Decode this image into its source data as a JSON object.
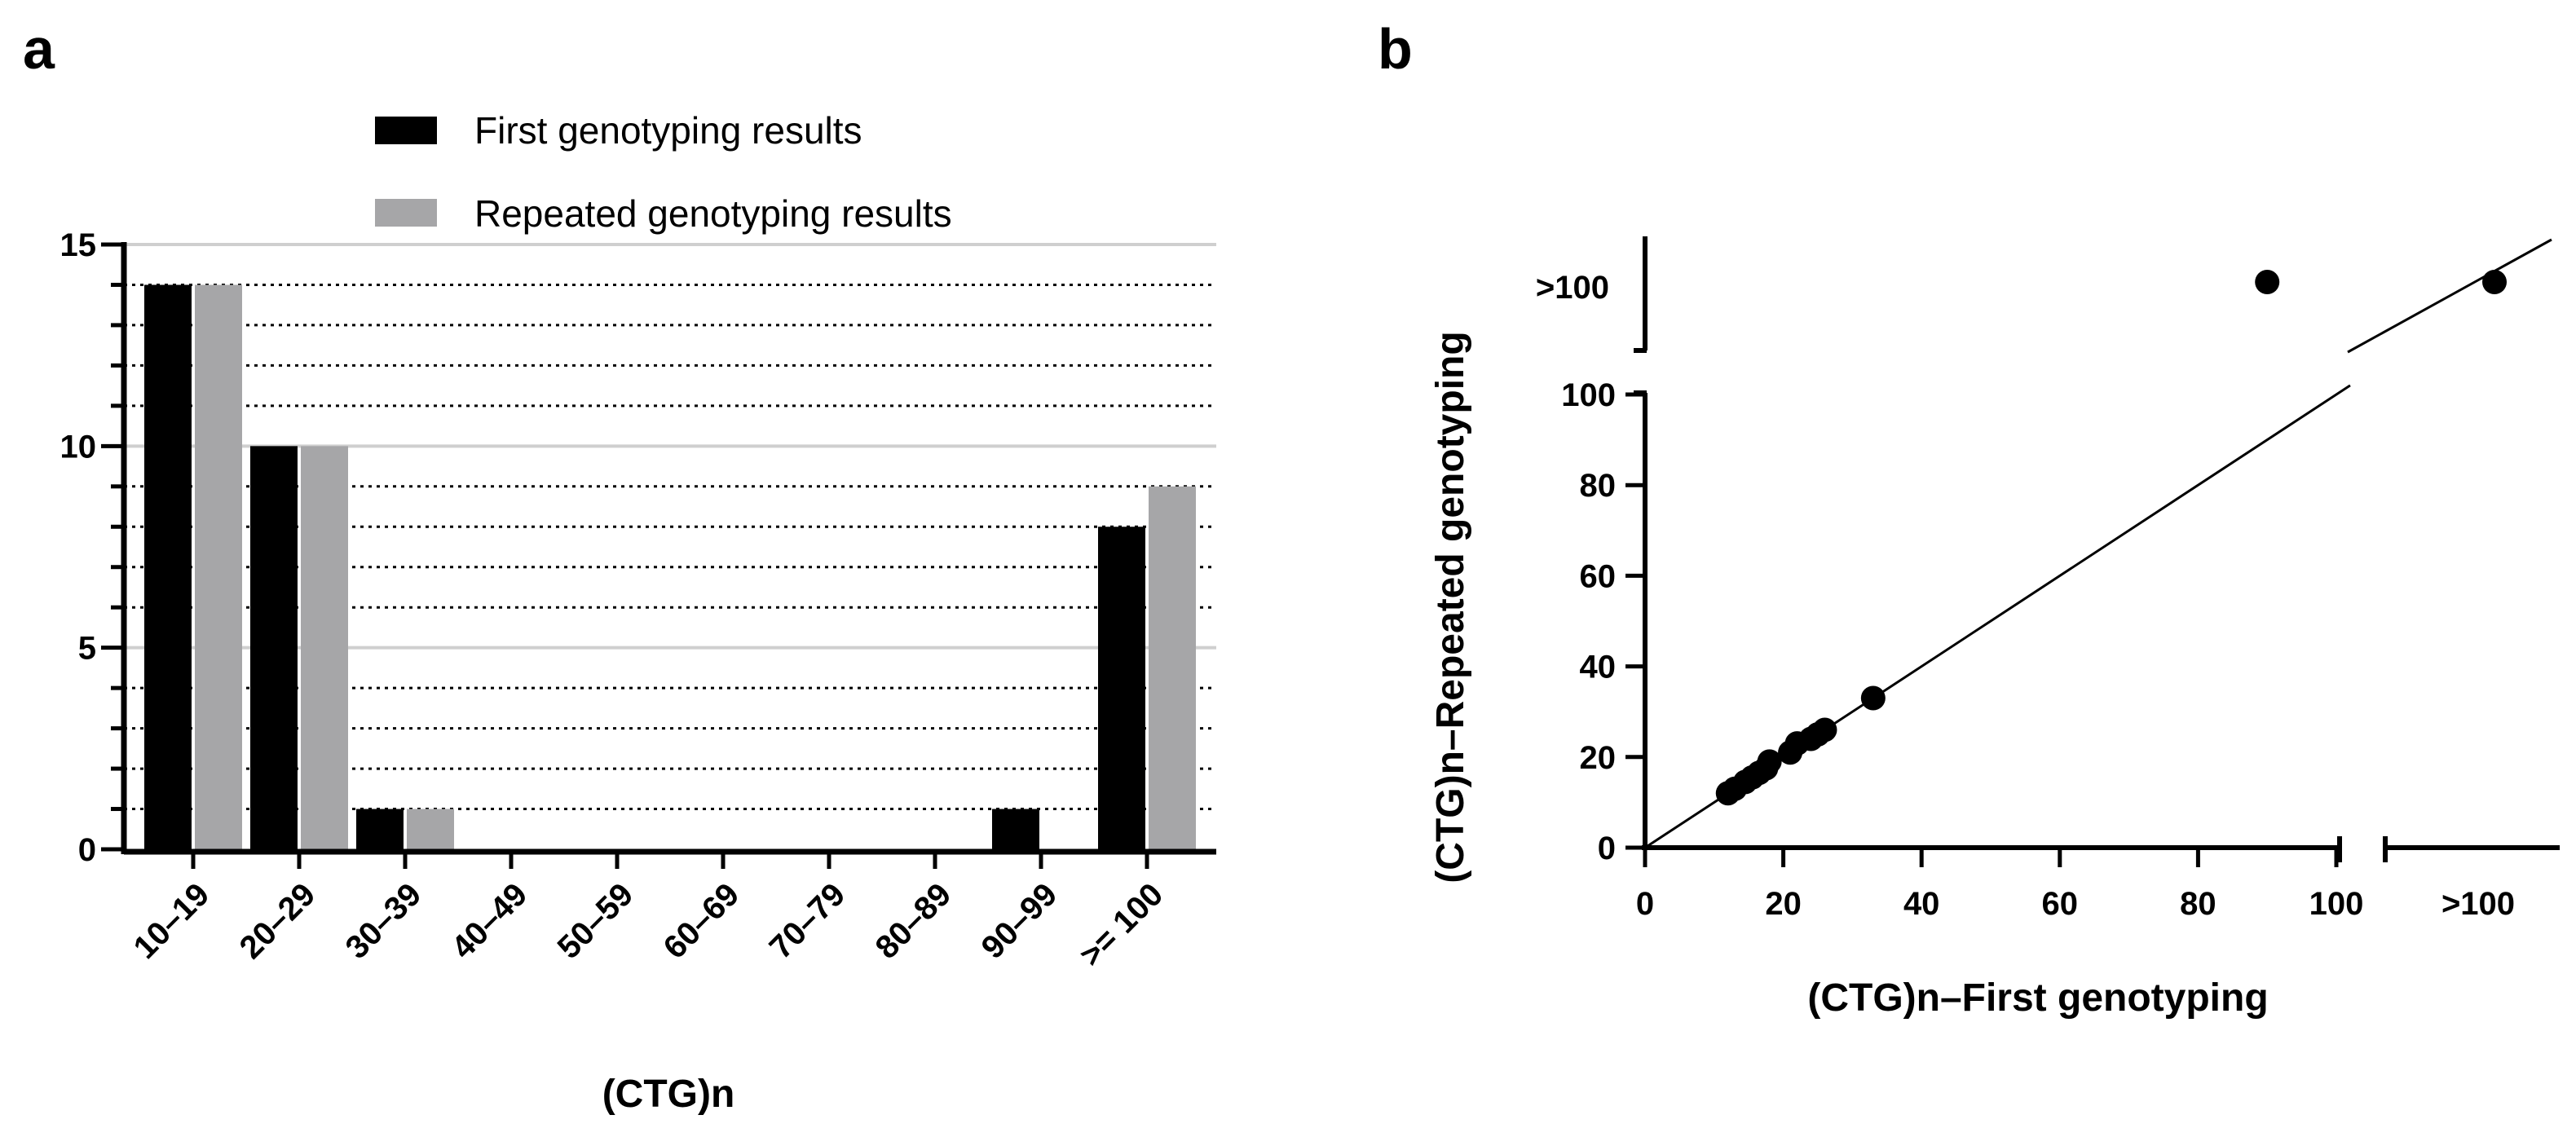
{
  "chart_data": [
    {
      "panel": "a",
      "type": "bar",
      "xlabel": "(CTG)n",
      "ylabel": "",
      "ylim": [
        0,
        15
      ],
      "yticks": [
        "0",
        "5",
        "10",
        "15"
      ],
      "categories": [
        "10–19",
        "20–29",
        "30–39",
        "40–49",
        "50–59",
        "60–69",
        "70–79",
        "80–89",
        "90–99",
        ">= 100"
      ],
      "series": [
        {
          "name": "First genotyping results",
          "color": "#000000",
          "values": [
            14,
            10,
            1,
            0,
            0,
            0,
            0,
            0,
            1,
            8
          ]
        },
        {
          "name": "Repeated genotyping results",
          "color": "#a6a6a8",
          "values": [
            14,
            10,
            1,
            0,
            0,
            0,
            0,
            0,
            0,
            9
          ]
        }
      ],
      "legend": "top"
    },
    {
      "panel": "b",
      "type": "scatter",
      "xlabel": "(CTG)n–First genotyping",
      "ylabel": "(CTG)n–Repeated genotyping",
      "xlim": [
        0,
        100
      ],
      "ylim": [
        0,
        100
      ],
      "xticks": [
        "0",
        "20",
        "40",
        "60",
        "80",
        "100"
      ],
      "yticks": [
        "0",
        "20",
        "40",
        "60",
        "80",
        "100"
      ],
      "break_label_x": ">100",
      "break_label_y": ">100",
      "points": [
        {
          "x": 12,
          "y": 12
        },
        {
          "x": 13,
          "y": 13
        },
        {
          "x": 14.5,
          "y": 14.5
        },
        {
          "x": 15.5,
          "y": 15.5
        },
        {
          "x": 16.5,
          "y": 16.5
        },
        {
          "x": 17.5,
          "y": 17.5
        },
        {
          "x": 18,
          "y": 19
        },
        {
          "x": 21,
          "y": 21
        },
        {
          "x": 22,
          "y": 23
        },
        {
          "x": 24,
          "y": 24
        },
        {
          "x": 25,
          "y": 25
        },
        {
          "x": 26,
          "y": 26
        },
        {
          "x": 33,
          "y": 33
        },
        {
          "x": 90,
          "y": ">100"
        },
        {
          "x": ">100",
          "y": ">100"
        }
      ],
      "identity_line": true
    }
  ]
}
